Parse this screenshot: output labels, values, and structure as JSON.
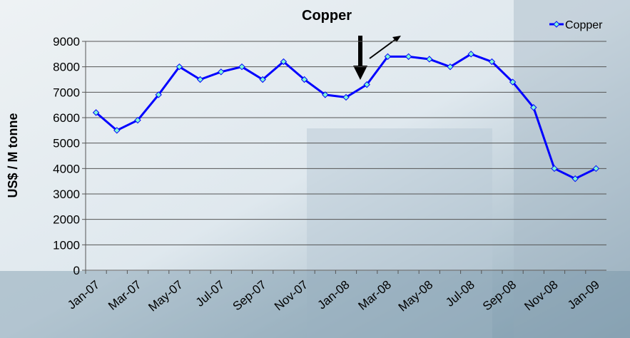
{
  "chart_data": {
    "type": "line",
    "title": "Copper",
    "y_label": "US$ /  M tonne",
    "categories": [
      "Jan-07",
      null,
      "Mar-07",
      null,
      "May-07",
      null,
      "Jul-07",
      null,
      "Sep-07",
      null,
      "Nov-07",
      null,
      "Jan-08",
      null,
      "Mar-08",
      null,
      "May-08",
      null,
      "Jul-08",
      null,
      "Sep-08",
      null,
      "Nov-08",
      null,
      "Jan-09"
    ],
    "series": [
      {
        "name": "Copper",
        "color": "#0000ff",
        "marker_color": "#7fffd4",
        "values": [
          6200,
          5500,
          5900,
          6900,
          8000,
          7500,
          7800,
          8000,
          7500,
          8200,
          7500,
          6900,
          6800,
          7300,
          8400,
          8400,
          8300,
          8000,
          8500,
          8200,
          7400,
          6400,
          4000,
          3600,
          4000
        ]
      }
    ],
    "ylim": [
      0,
      9000
    ],
    "yticks": [
      0,
      1000,
      2000,
      3000,
      4000,
      5000,
      6000,
      7000,
      8000,
      9000
    ],
    "grid": true,
    "legend": "top-right"
  }
}
